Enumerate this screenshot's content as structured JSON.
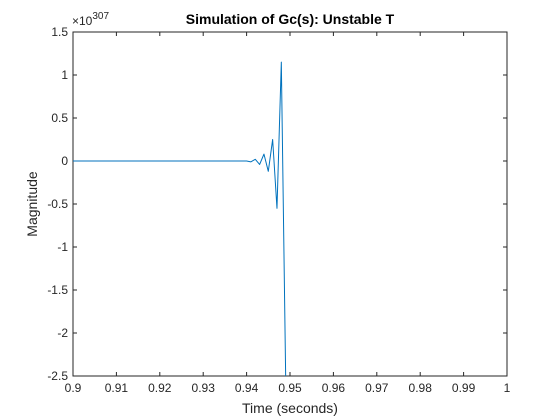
{
  "chart_data": {
    "type": "line",
    "title": "Simulation of Gc(s): Unstable T",
    "xlabel": "Time (seconds)",
    "ylabel": "Magnitude",
    "exponent_label": "×10",
    "exponent_power": "307",
    "xlim": [
      0.9,
      1.0
    ],
    "ylim": [
      -2.5,
      1.5
    ],
    "x_ticks": [
      0.9,
      0.91,
      0.92,
      0.93,
      0.94,
      0.95,
      0.96,
      0.97,
      0.98,
      0.99,
      1
    ],
    "x_tick_labels": [
      "0.9",
      "0.91",
      "0.92",
      "0.93",
      "0.94",
      "0.95",
      "0.96",
      "0.97",
      "0.98",
      "0.99",
      "1"
    ],
    "y_ticks": [
      1.5,
      1,
      0.5,
      0,
      -0.5,
      -1,
      -1.5,
      -2,
      -2.5
    ],
    "y_tick_labels": [
      "1.5",
      "1",
      "0.5",
      "0",
      "-0.5",
      "-1",
      "-1.5",
      "-2",
      "-2.5"
    ],
    "grid": false,
    "line_color": "#0072BD",
    "series": [
      {
        "x": [
          0.9,
          0.92,
          0.94,
          0.941,
          0.942,
          0.943,
          0.944,
          0.945,
          0.946,
          0.947,
          0.948,
          0.949
        ],
        "y": [
          0,
          0,
          0,
          -0.01,
          0.02,
          -0.04,
          0.08,
          -0.12,
          0.25,
          -0.55,
          1.15,
          -2.5
        ]
      }
    ]
  }
}
